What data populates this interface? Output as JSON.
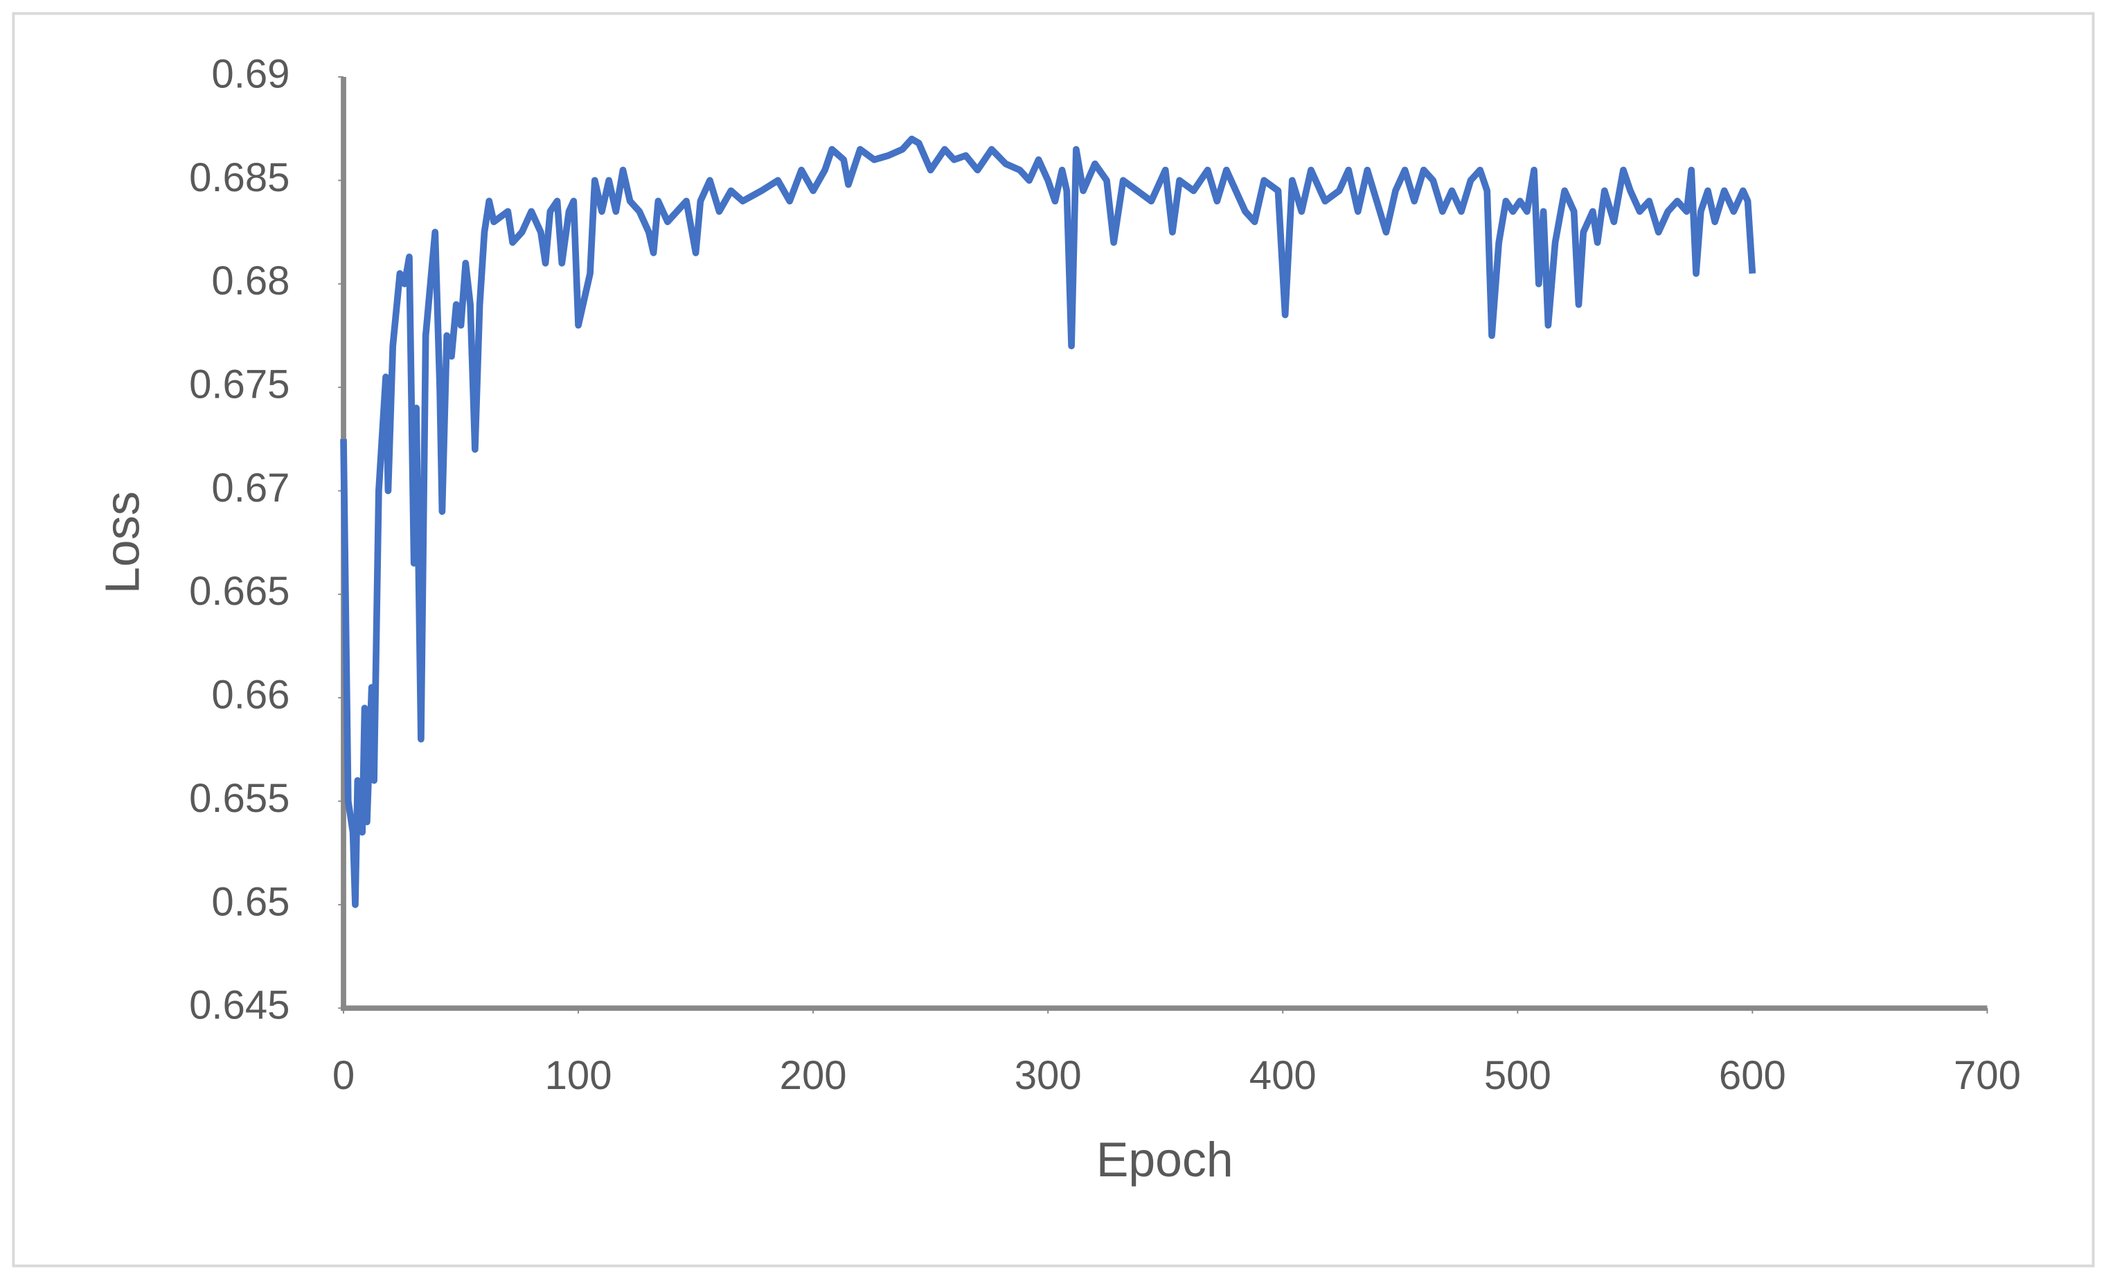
{
  "chart_data": {
    "type": "line",
    "x_label": "Epoch",
    "y_label": "Loss",
    "color": "#4472c4",
    "xlim": [
      0,
      700
    ],
    "xticks": [
      0,
      100,
      200,
      300,
      400,
      500,
      600,
      700
    ],
    "ylim": [
      0.645,
      0.69
    ],
    "yticks": [
      0.645,
      0.65,
      0.655,
      0.66,
      0.665,
      0.67,
      0.675,
      0.68,
      0.685,
      0.69
    ],
    "x": [
      0,
      2,
      4,
      5,
      6,
      8,
      9,
      10,
      12,
      13,
      15,
      18,
      19,
      21,
      24,
      26,
      28,
      30,
      31,
      33,
      35,
      37,
      39,
      41,
      42,
      44,
      46,
      48,
      50,
      52,
      54,
      56,
      58,
      60,
      62,
      64,
      70,
      72,
      76,
      80,
      84,
      86,
      88,
      91,
      93,
      96,
      98,
      100,
      103,
      105,
      107,
      110,
      113,
      116,
      119,
      122,
      126,
      130,
      132,
      134,
      138,
      142,
      146,
      150,
      152,
      156,
      160,
      165,
      170,
      178,
      185,
      190,
      195,
      200,
      205,
      208,
      213,
      215,
      220,
      226,
      232,
      238,
      242,
      245,
      250,
      256,
      260,
      265,
      270,
      276,
      282,
      288,
      292,
      296,
      300,
      303,
      306,
      308,
      310,
      312,
      315,
      320,
      325,
      328,
      332,
      338,
      344,
      350,
      353,
      356,
      362,
      368,
      372,
      376,
      380,
      384,
      388,
      392,
      398,
      401,
      404,
      408,
      412,
      418,
      424,
      428,
      432,
      436,
      440,
      444,
      448,
      452,
      456,
      460,
      464,
      468,
      472,
      476,
      480,
      484,
      487,
      489,
      492,
      495,
      498,
      501,
      504,
      507,
      509,
      511,
      513,
      516,
      520,
      524,
      526,
      528,
      532,
      534,
      537,
      541,
      545,
      548,
      552,
      556,
      560,
      564,
      568,
      572,
      574,
      576,
      578,
      581,
      584,
      588,
      592,
      596,
      598,
      600
    ],
    "values": [
      0.6725,
      0.655,
      0.6535,
      0.65,
      0.656,
      0.6535,
      0.6595,
      0.654,
      0.6605,
      0.656,
      0.67,
      0.6755,
      0.67,
      0.677,
      0.6805,
      0.68,
      0.6813,
      0.6665,
      0.674,
      0.658,
      0.6775,
      0.68,
      0.6825,
      0.675,
      0.669,
      0.6775,
      0.6765,
      0.679,
      0.678,
      0.681,
      0.679,
      0.672,
      0.679,
      0.6825,
      0.684,
      0.683,
      0.6835,
      0.682,
      0.6825,
      0.6835,
      0.6825,
      0.681,
      0.6835,
      0.684,
      0.681,
      0.6835,
      0.684,
      0.678,
      0.6795,
      0.6805,
      0.685,
      0.6835,
      0.685,
      0.6835,
      0.6855,
      0.684,
      0.6835,
      0.6825,
      0.6815,
      0.684,
      0.683,
      0.6835,
      0.684,
      0.6815,
      0.684,
      0.685,
      0.6835,
      0.6845,
      0.684,
      0.6845,
      0.685,
      0.684,
      0.6855,
      0.6845,
      0.6855,
      0.6865,
      0.686,
      0.6848,
      0.6865,
      0.686,
      0.6862,
      0.6865,
      0.687,
      0.6868,
      0.6855,
      0.6865,
      0.686,
      0.6862,
      0.6855,
      0.6865,
      0.6858,
      0.6855,
      0.685,
      0.686,
      0.685,
      0.684,
      0.6855,
      0.6845,
      0.677,
      0.6865,
      0.6845,
      0.6858,
      0.685,
      0.682,
      0.685,
      0.6845,
      0.684,
      0.6855,
      0.6825,
      0.685,
      0.6845,
      0.6855,
      0.684,
      0.6855,
      0.6845,
      0.6835,
      0.683,
      0.685,
      0.6845,
      0.6785,
      0.685,
      0.6835,
      0.6855,
      0.684,
      0.6845,
      0.6855,
      0.6835,
      0.6855,
      0.684,
      0.6825,
      0.6845,
      0.6855,
      0.684,
      0.6855,
      0.685,
      0.6835,
      0.6845,
      0.6835,
      0.685,
      0.6855,
      0.6845,
      0.6775,
      0.682,
      0.684,
      0.6835,
      0.684,
      0.6835,
      0.6855,
      0.68,
      0.6835,
      0.678,
      0.682,
      0.6845,
      0.6835,
      0.679,
      0.6825,
      0.6835,
      0.682,
      0.6845,
      0.683,
      0.6855,
      0.6845,
      0.6835,
      0.684,
      0.6825,
      0.6835,
      0.684,
      0.6835,
      0.6855,
      0.6805,
      0.6835,
      0.6845,
      0.683,
      0.6845,
      0.6835,
      0.6845,
      0.684,
      0.6805
    ]
  }
}
